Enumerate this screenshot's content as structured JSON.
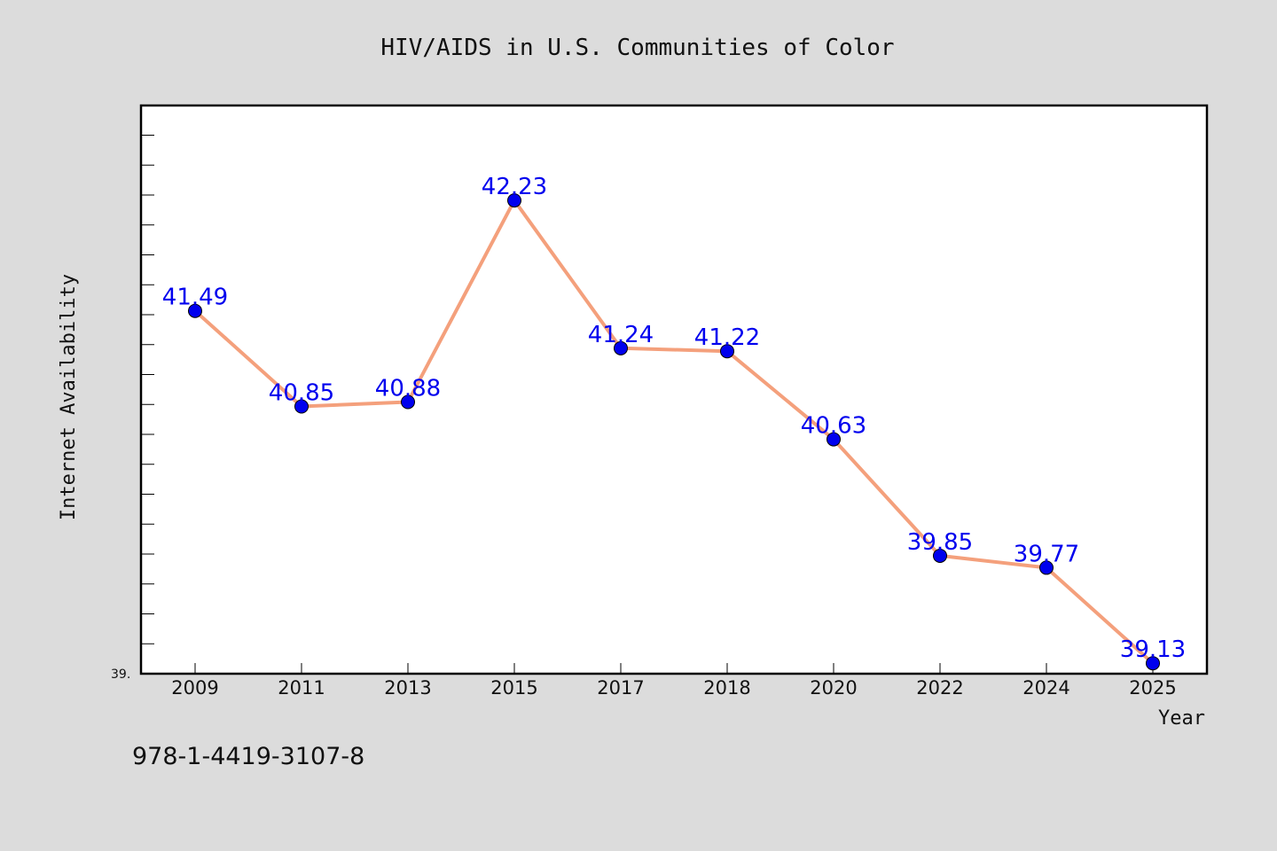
{
  "chart_data": {
    "type": "line",
    "title": "HIV/AIDS in U.S. Communities of Color",
    "xlabel": "Year",
    "ylabel": "Internet Availability",
    "categories": [
      "2009",
      "2011",
      "2013",
      "2015",
      "2017",
      "2018",
      "2020",
      "2022",
      "2024",
      "2025"
    ],
    "series": [
      {
        "values": [
          41.49,
          40.85,
          40.88,
          42.23,
          41.24,
          41.22,
          40.63,
          39.85,
          39.77,
          39.13
        ],
        "data_labels": [
          "41.49",
          "40.85",
          "40.88",
          "42.23",
          "41.24",
          "41.22",
          "40.63",
          "39.85",
          "39.77",
          "39.13"
        ],
        "line_color": "#f4a07c",
        "marker_color": "#0000ee"
      }
    ],
    "y_tick_label_min": "39.",
    "ylim": [
      39.06,
      42.86
    ],
    "grid": false,
    "legend": "none",
    "plot_background": "#ffffff",
    "page_background": "#dcdcdc"
  },
  "footer": {
    "isbn": "978-1-4419-3107-8"
  }
}
